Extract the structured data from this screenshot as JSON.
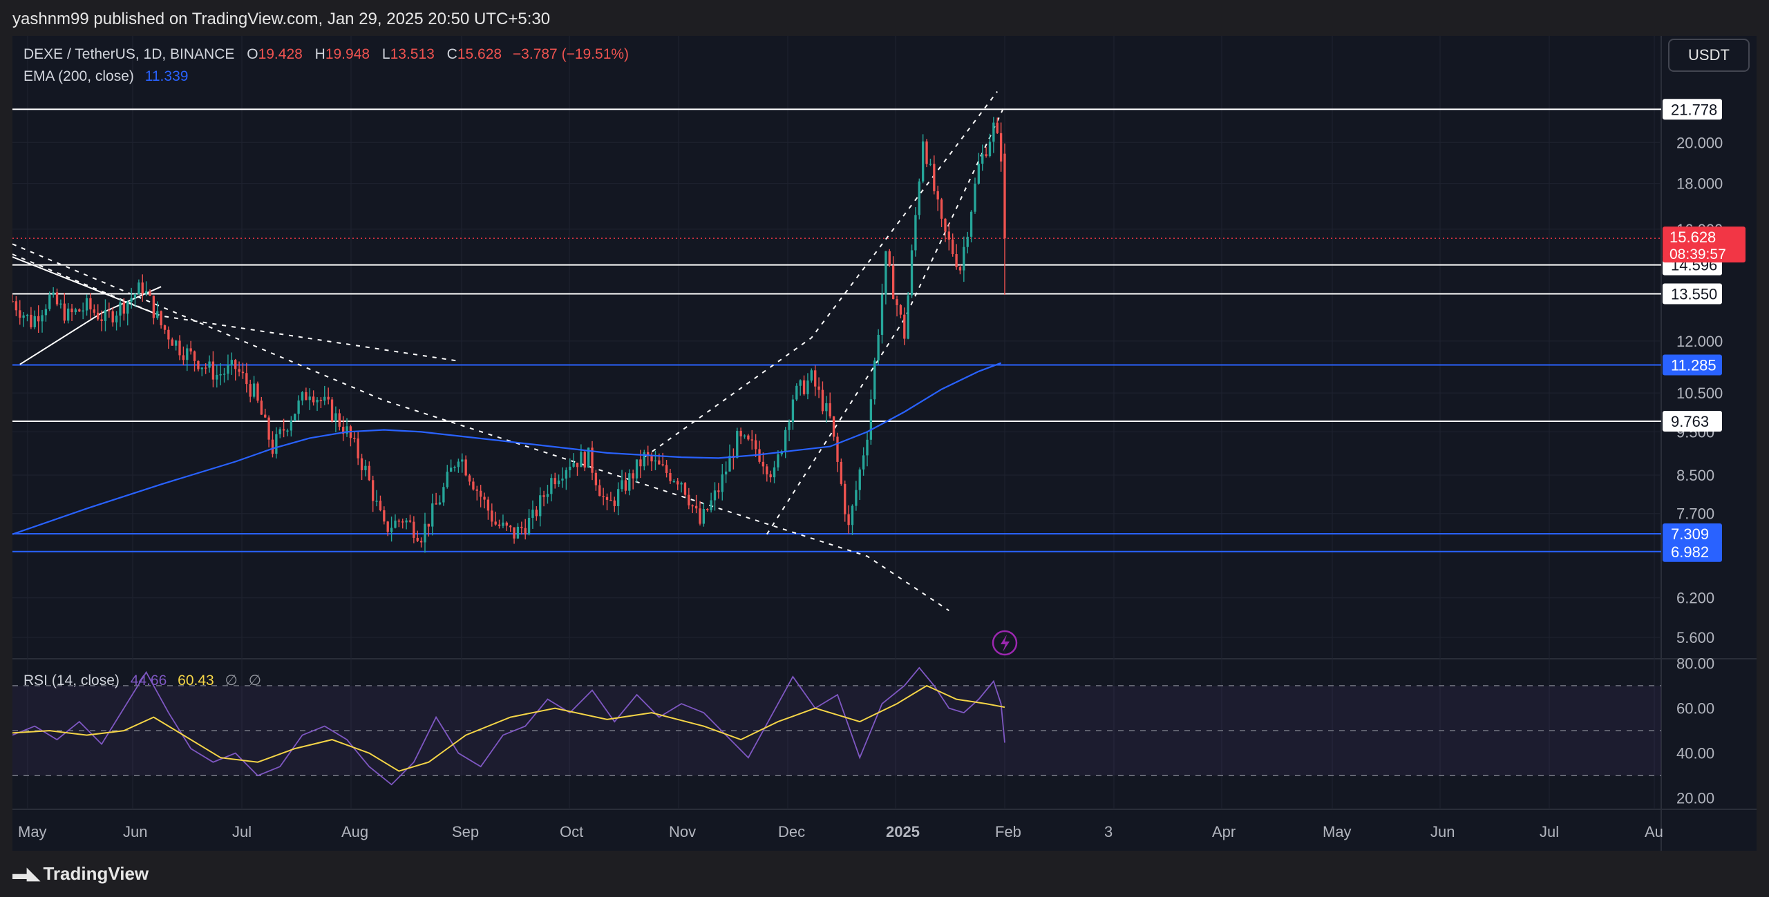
{
  "header": {
    "publisher_line": "yashnm99 published on TradingView.com, Jan 29, 2025 20:50 UTC+5:30",
    "currency_button": "USDT"
  },
  "footer": {
    "brand": "TradingView"
  },
  "legend": {
    "symbol": "DEXE / TetherUS, 1D, BINANCE",
    "o_label": "O",
    "o_value": "19.428",
    "h_label": "H",
    "h_value": "19.948",
    "l_label": "L",
    "l_value": "13.513",
    "c_label": "C",
    "c_value": "15.628",
    "change": "−3.787 (−19.51%)",
    "ema_label": "EMA (200, close)",
    "ema_value": "11.339",
    "rsi_label": "RSI (14, close)",
    "rsi_value": "44.66",
    "rsi_ma_value": "60.43",
    "rsi_extra_1": "∅",
    "rsi_extra_2": "∅"
  },
  "colors": {
    "background": "#131722",
    "up": "#26a69a",
    "down": "#ef5350",
    "ema": "#2962ff",
    "rsi": "#7e57c2",
    "rsi_ma": "#f5d547",
    "level_white": "#ffffff",
    "level_blue": "#2962ff",
    "price_label": "#f23645"
  },
  "chart_data": [
    {
      "type": "candlestick",
      "title": "DEXE / TetherUS, 1D, BINANCE",
      "price_axis_ticks": [
        "20.000",
        "18.000",
        "16.000",
        "12.000",
        "10.500",
        "9.500",
        "8.500",
        "7.700",
        "6.200",
        "5.600"
      ],
      "time_axis_ticks": [
        "May",
        "Jun",
        "Jul",
        "Aug",
        "Sep",
        "Oct",
        "Nov",
        "Dec",
        "2025",
        "Feb",
        "3",
        "Apr",
        "May",
        "Jun",
        "Jul",
        "Au"
      ],
      "ylim": [
        5.3,
        24.5
      ],
      "log_scale": true,
      "last_bar": {
        "open": 19.428,
        "high": 19.948,
        "low": 13.513,
        "close": 15.628,
        "change": -3.787,
        "change_pct": -19.51
      },
      "current_price_label": "15.628",
      "countdown": "08:39:57",
      "horizontal_levels": [
        {
          "value": 21.778,
          "label": "21.778",
          "color": "white"
        },
        {
          "value": 14.596,
          "label": "14.596",
          "color": "white"
        },
        {
          "value": 13.55,
          "label": "13.550",
          "color": "white"
        },
        {
          "value": 11.285,
          "label": "11.285",
          "color": "blue"
        },
        {
          "value": 9.763,
          "label": "9.763",
          "color": "white"
        },
        {
          "value": 7.309,
          "label": "7.309",
          "color": "blue"
        },
        {
          "value": 6.982,
          "label": "6.982",
          "color": "blue"
        }
      ],
      "ema_200": {
        "name": "EMA (200, close)",
        "last": 11.339,
        "points": [
          [
            0,
            7.3
          ],
          [
            20,
            7.8
          ],
          [
            40,
            8.3
          ],
          [
            60,
            8.8
          ],
          [
            70,
            9.1
          ],
          [
            80,
            9.35
          ],
          [
            90,
            9.5
          ],
          [
            100,
            9.55
          ],
          [
            110,
            9.5
          ],
          [
            120,
            9.4
          ],
          [
            130,
            9.3
          ],
          [
            140,
            9.2
          ],
          [
            150,
            9.1
          ],
          [
            160,
            9.0
          ],
          [
            170,
            8.95
          ],
          [
            180,
            8.9
          ],
          [
            190,
            8.88
          ],
          [
            200,
            8.95
          ],
          [
            210,
            9.05
          ],
          [
            220,
            9.15
          ],
          [
            230,
            9.5
          ],
          [
            240,
            10.0
          ],
          [
            250,
            10.6
          ],
          [
            260,
            11.1
          ],
          [
            266,
            11.34
          ]
        ]
      },
      "candles_approx": [
        [
          0,
          13.3
        ],
        [
          5,
          12.6
        ],
        [
          10,
          13.4
        ],
        [
          15,
          12.8
        ],
        [
          20,
          13.1
        ],
        [
          25,
          12.7
        ],
        [
          30,
          13.2
        ],
        [
          35,
          13.8
        ],
        [
          40,
          12.5
        ],
        [
          45,
          11.8
        ],
        [
          50,
          11.4
        ],
        [
          55,
          11.0
        ],
        [
          60,
          11.2
        ],
        [
          65,
          10.5
        ],
        [
          70,
          9.1
        ],
        [
          75,
          9.9
        ],
        [
          80,
          10.6
        ],
        [
          85,
          10.1
        ],
        [
          90,
          9.5
        ],
        [
          95,
          8.6
        ],
        [
          100,
          7.4
        ],
        [
          105,
          7.6
        ],
        [
          110,
          7.3
        ],
        [
          115,
          8.0
        ],
        [
          120,
          9.0
        ],
        [
          125,
          8.2
        ],
        [
          130,
          7.5
        ],
        [
          135,
          7.3
        ],
        [
          140,
          7.6
        ],
        [
          145,
          8.4
        ],
        [
          150,
          8.8
        ],
        [
          155,
          8.9
        ],
        [
          160,
          7.8
        ],
        [
          165,
          8.3
        ],
        [
          170,
          8.9
        ],
        [
          175,
          8.6
        ],
        [
          180,
          8.4
        ],
        [
          185,
          7.5
        ],
        [
          190,
          8.2
        ],
        [
          195,
          9.3
        ],
        [
          200,
          9.1
        ],
        [
          205,
          8.5
        ],
        [
          210,
          10.4
        ],
        [
          215,
          10.9
        ],
        [
          220,
          9.8
        ],
        [
          225,
          7.4
        ],
        [
          230,
          9.5
        ],
        [
          235,
          14.8
        ],
        [
          240,
          12.2
        ],
        [
          245,
          20.3
        ],
        [
          250,
          16.1
        ],
        [
          255,
          14.5
        ],
        [
          260,
          18.8
        ],
        [
          264,
          20.8
        ],
        [
          266,
          19.43
        ],
        [
          267,
          15.63
        ]
      ]
    },
    {
      "type": "line",
      "title": "RSI (14, close)",
      "ylim": [
        15,
        82
      ],
      "axis_ticks": [
        "80.00",
        "60.00",
        "40.00",
        "20.00"
      ],
      "bands": [
        70,
        50,
        30
      ],
      "series": [
        {
          "name": "RSI",
          "last": 44.66,
          "values": [
            [
              0,
              48
            ],
            [
              6,
              52
            ],
            [
              12,
              46
            ],
            [
              18,
              54
            ],
            [
              24,
              44
            ],
            [
              30,
              60
            ],
            [
              36,
              76
            ],
            [
              42,
              58
            ],
            [
              48,
              42
            ],
            [
              54,
              36
            ],
            [
              60,
              40
            ],
            [
              66,
              30
            ],
            [
              72,
              34
            ],
            [
              78,
              48
            ],
            [
              84,
              52
            ],
            [
              90,
              46
            ],
            [
              96,
              34
            ],
            [
              102,
              26
            ],
            [
              108,
              36
            ],
            [
              114,
              56
            ],
            [
              120,
              40
            ],
            [
              126,
              34
            ],
            [
              132,
              48
            ],
            [
              138,
              52
            ],
            [
              144,
              64
            ],
            [
              150,
              58
            ],
            [
              156,
              68
            ],
            [
              162,
              54
            ],
            [
              168,
              66
            ],
            [
              174,
              56
            ],
            [
              180,
              62
            ],
            [
              186,
              58
            ],
            [
              192,
              48
            ],
            [
              198,
              38
            ],
            [
              204,
              56
            ],
            [
              210,
              74
            ],
            [
              216,
              60
            ],
            [
              222,
              66
            ],
            [
              228,
              38
            ],
            [
              234,
              62
            ],
            [
              240,
              70
            ],
            [
              244,
              78
            ],
            [
              248,
              70
            ],
            [
              252,
              60
            ],
            [
              256,
              58
            ],
            [
              260,
              64
            ],
            [
              264,
              72
            ],
            [
              266,
              62
            ],
            [
              267,
              44.66
            ]
          ]
        },
        {
          "name": "RSI MA",
          "last": 60.43,
          "values": [
            [
              0,
              49
            ],
            [
              10,
              50
            ],
            [
              20,
              48
            ],
            [
              30,
              50
            ],
            [
              38,
              56
            ],
            [
              46,
              48
            ],
            [
              56,
              38
            ],
            [
              66,
              36
            ],
            [
              76,
              42
            ],
            [
              86,
              46
            ],
            [
              96,
              40
            ],
            [
              104,
              32
            ],
            [
              112,
              36
            ],
            [
              122,
              48
            ],
            [
              134,
              56
            ],
            [
              146,
              60
            ],
            [
              160,
              55
            ],
            [
              172,
              58
            ],
            [
              186,
              52
            ],
            [
              196,
              46
            ],
            [
              206,
              54
            ],
            [
              216,
              60
            ],
            [
              228,
              54
            ],
            [
              238,
              62
            ],
            [
              246,
              70
            ],
            [
              254,
              64
            ],
            [
              262,
              62
            ],
            [
              267,
              60.43
            ]
          ]
        }
      ]
    }
  ]
}
